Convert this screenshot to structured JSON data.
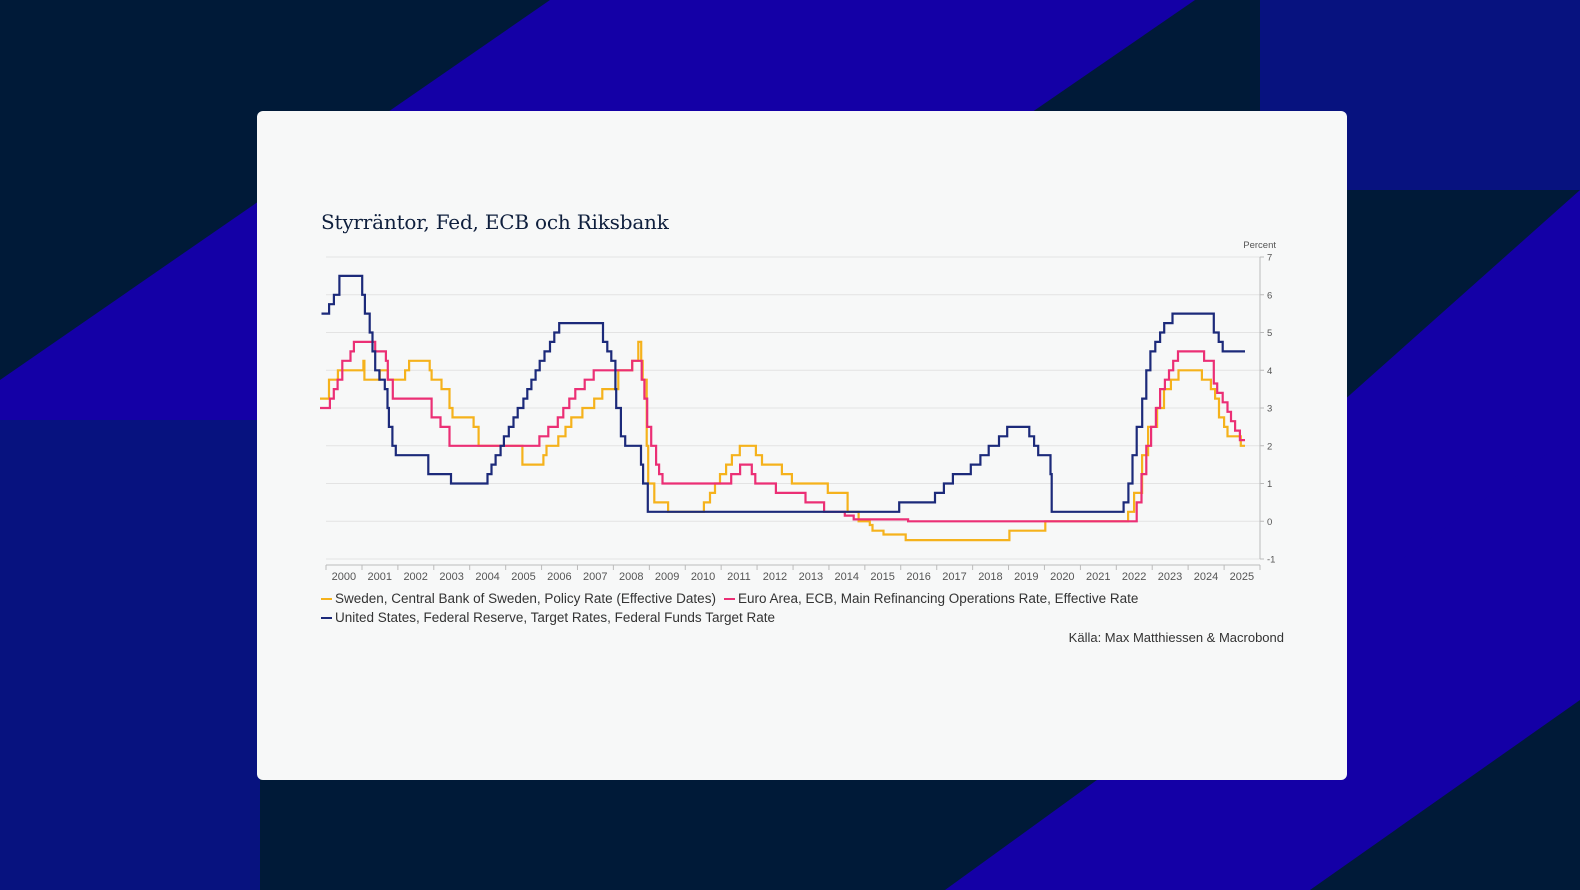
{
  "colors": {
    "background": "#001a38",
    "stripe_bright": "#1400a6",
    "stripe_dark": "#07127f",
    "card": "#f7f8f8",
    "grid": "#e3e3e3",
    "axis": "#bbbbbb",
    "tick_text": "#555555",
    "title_text": "#0f1f3d"
  },
  "chart_data": {
    "type": "line",
    "title": "Styrräntor, Fed, ECB och Riksbank",
    "ylabel": "Percent",
    "xlim": [
      "2000-01-01",
      "2026-01-01"
    ],
    "ylim": [
      -1,
      7
    ],
    "yticks": [
      -1,
      0,
      1,
      2,
      3,
      4,
      5,
      6,
      7
    ],
    "xticks": [
      "2000",
      "2001",
      "2002",
      "2003",
      "2004",
      "2005",
      "2006",
      "2007",
      "2008",
      "2009",
      "2010",
      "2011",
      "2012",
      "2013",
      "2014",
      "2015",
      "2016",
      "2017",
      "2018",
      "2019",
      "2020",
      "2021",
      "2022",
      "2023",
      "2024",
      "2025"
    ],
    "grid": true,
    "y_axis_side": "right",
    "legend_position": "bottom",
    "source": "Källa: Max Matthiessen & Macrobond",
    "series": [
      {
        "name": "Sweden, Central Bank of Sweden, Policy Rate (Effective Dates)",
        "color": "#f5b21c",
        "points": [
          [
            "1999-11-01",
            3.25
          ],
          [
            "2000-02-01",
            3.75
          ],
          [
            "2000-05-01",
            4.0
          ],
          [
            "2001-01-15",
            4.25
          ],
          [
            "2001-01-25",
            3.75
          ],
          [
            "2001-07-01",
            4.0
          ],
          [
            "2001-09-20",
            3.75
          ],
          [
            "2002-03-15",
            4.0
          ],
          [
            "2002-04-25",
            4.25
          ],
          [
            "2002-11-20",
            4.0
          ],
          [
            "2002-12-10",
            3.75
          ],
          [
            "2003-03-20",
            3.5
          ],
          [
            "2003-06-10",
            3.0
          ],
          [
            "2003-07-10",
            2.75
          ],
          [
            "2004-02-10",
            2.5
          ],
          [
            "2004-04-01",
            2.0
          ],
          [
            "2005-06-20",
            1.5
          ],
          [
            "2006-01-20",
            1.75
          ],
          [
            "2006-02-20",
            2.0
          ],
          [
            "2006-06-20",
            2.25
          ],
          [
            "2006-09-01",
            2.5
          ],
          [
            "2006-10-30",
            2.75
          ],
          [
            "2007-02-20",
            3.0
          ],
          [
            "2007-06-20",
            3.25
          ],
          [
            "2007-09-10",
            3.5
          ],
          [
            "2008-02-20",
            4.0
          ],
          [
            "2008-07-10",
            4.25
          ],
          [
            "2008-09-10",
            4.75
          ],
          [
            "2008-10-10",
            4.25
          ],
          [
            "2008-10-25",
            3.75
          ],
          [
            "2008-12-05",
            2.0
          ],
          [
            "2008-12-20",
            1.0
          ],
          [
            "2009-02-20",
            0.5
          ],
          [
            "2009-07-10",
            0.25
          ],
          [
            "2010-07-10",
            0.5
          ],
          [
            "2010-09-10",
            0.75
          ],
          [
            "2010-10-30",
            1.0
          ],
          [
            "2010-12-20",
            1.25
          ],
          [
            "2011-02-20",
            1.5
          ],
          [
            "2011-04-20",
            1.75
          ],
          [
            "2011-07-10",
            2.0
          ],
          [
            "2011-12-20",
            1.75
          ],
          [
            "2012-02-20",
            1.5
          ],
          [
            "2012-09-10",
            1.25
          ],
          [
            "2012-12-20",
            1.0
          ],
          [
            "2013-12-20",
            0.75
          ],
          [
            "2014-07-10",
            0.25
          ],
          [
            "2014-10-30",
            0.0
          ],
          [
            "2015-02-20",
            -0.1
          ],
          [
            "2015-03-20",
            -0.25
          ],
          [
            "2015-07-10",
            -0.35
          ],
          [
            "2016-02-20",
            -0.5
          ],
          [
            "2019-01-10",
            -0.25
          ],
          [
            "2020-01-10",
            0.0
          ],
          [
            "2022-05-01",
            0.25
          ],
          [
            "2022-07-01",
            0.75
          ],
          [
            "2022-09-20",
            1.75
          ],
          [
            "2022-11-20",
            2.5
          ],
          [
            "2023-02-20",
            3.0
          ],
          [
            "2023-05-01",
            3.5
          ],
          [
            "2023-07-10",
            3.75
          ],
          [
            "2023-09-25",
            4.0
          ],
          [
            "2024-05-20",
            3.75
          ],
          [
            "2024-08-20",
            3.5
          ],
          [
            "2024-10-01",
            3.25
          ],
          [
            "2024-11-10",
            2.75
          ],
          [
            "2025-01-01",
            2.5
          ],
          [
            "2025-02-05",
            2.25
          ],
          [
            "2025-06-20",
            2.0
          ],
          [
            "2025-08-01",
            2.0
          ]
        ]
      },
      {
        "name": "Euro Area, ECB, Main Refinancing Operations Rate, Effective Rate",
        "color": "#eb2f75",
        "points": [
          [
            "1999-11-01",
            3.0
          ],
          [
            "2000-02-10",
            3.25
          ],
          [
            "2000-03-20",
            3.5
          ],
          [
            "2000-04-28",
            3.75
          ],
          [
            "2000-06-15",
            4.25
          ],
          [
            "2000-09-06",
            4.5
          ],
          [
            "2000-10-11",
            4.75
          ],
          [
            "2001-05-15",
            4.5
          ],
          [
            "2001-09-01",
            4.25
          ],
          [
            "2001-09-20",
            3.75
          ],
          [
            "2001-11-10",
            3.25
          ],
          [
            "2002-12-10",
            2.75
          ],
          [
            "2003-03-10",
            2.5
          ],
          [
            "2003-06-10",
            2.0
          ],
          [
            "2005-12-10",
            2.25
          ],
          [
            "2006-03-10",
            2.5
          ],
          [
            "2006-06-15",
            2.75
          ],
          [
            "2006-08-10",
            3.0
          ],
          [
            "2006-10-10",
            3.25
          ],
          [
            "2006-12-10",
            3.5
          ],
          [
            "2007-03-15",
            3.75
          ],
          [
            "2007-06-15",
            4.0
          ],
          [
            "2008-07-10",
            4.25
          ],
          [
            "2008-10-15",
            3.75
          ],
          [
            "2008-11-12",
            3.25
          ],
          [
            "2008-12-10",
            2.5
          ],
          [
            "2009-01-20",
            2.0
          ],
          [
            "2009-03-10",
            1.5
          ],
          [
            "2009-04-10",
            1.25
          ],
          [
            "2009-05-15",
            1.0
          ],
          [
            "2011-04-13",
            1.25
          ],
          [
            "2011-07-13",
            1.5
          ],
          [
            "2011-11-09",
            1.25
          ],
          [
            "2011-12-14",
            1.0
          ],
          [
            "2012-07-11",
            0.75
          ],
          [
            "2013-05-08",
            0.5
          ],
          [
            "2013-11-13",
            0.25
          ],
          [
            "2014-06-11",
            0.15
          ],
          [
            "2014-09-10",
            0.05
          ],
          [
            "2016-03-16",
            0.0
          ],
          [
            "2022-07-27",
            0.5
          ],
          [
            "2022-09-14",
            1.25
          ],
          [
            "2022-11-02",
            2.0
          ],
          [
            "2022-12-21",
            2.5
          ],
          [
            "2023-02-08",
            3.0
          ],
          [
            "2023-03-22",
            3.5
          ],
          [
            "2023-05-10",
            3.75
          ],
          [
            "2023-06-21",
            4.0
          ],
          [
            "2023-08-02",
            4.25
          ],
          [
            "2023-09-20",
            4.5
          ],
          [
            "2024-06-12",
            4.25
          ],
          [
            "2024-09-18",
            3.65
          ],
          [
            "2024-10-23",
            3.4
          ],
          [
            "2024-12-18",
            3.15
          ],
          [
            "2025-02-05",
            2.9
          ],
          [
            "2025-03-12",
            2.65
          ],
          [
            "2025-04-23",
            2.4
          ],
          [
            "2025-06-11",
            2.15
          ],
          [
            "2025-08-01",
            2.15
          ]
        ]
      },
      {
        "name": "United States, Federal Reserve, Target Rates, Federal Funds Target Rate",
        "color": "#1c2a7a",
        "points": [
          [
            "1999-11-16",
            5.5
          ],
          [
            "2000-02-02",
            5.75
          ],
          [
            "2000-03-21",
            6.0
          ],
          [
            "2000-05-16",
            6.5
          ],
          [
            "2001-01-03",
            6.0
          ],
          [
            "2001-01-31",
            5.5
          ],
          [
            "2001-03-20",
            5.0
          ],
          [
            "2001-04-18",
            4.5
          ],
          [
            "2001-05-15",
            4.0
          ],
          [
            "2001-06-27",
            3.75
          ],
          [
            "2001-08-21",
            3.5
          ],
          [
            "2001-09-17",
            3.0
          ],
          [
            "2001-10-02",
            2.5
          ],
          [
            "2001-11-06",
            2.0
          ],
          [
            "2001-12-11",
            1.75
          ],
          [
            "2002-11-06",
            1.25
          ],
          [
            "2003-06-25",
            1.0
          ],
          [
            "2004-06-30",
            1.25
          ],
          [
            "2004-08-10",
            1.5
          ],
          [
            "2004-09-21",
            1.75
          ],
          [
            "2004-11-10",
            2.0
          ],
          [
            "2004-12-14",
            2.25
          ],
          [
            "2005-02-02",
            2.5
          ],
          [
            "2005-03-22",
            2.75
          ],
          [
            "2005-05-03",
            3.0
          ],
          [
            "2005-06-30",
            3.25
          ],
          [
            "2005-08-09",
            3.5
          ],
          [
            "2005-09-20",
            3.75
          ],
          [
            "2005-11-01",
            4.0
          ],
          [
            "2005-12-13",
            4.25
          ],
          [
            "2006-01-31",
            4.5
          ],
          [
            "2006-03-28",
            4.75
          ],
          [
            "2006-05-10",
            5.0
          ],
          [
            "2006-06-29",
            5.25
          ],
          [
            "2007-09-18",
            4.75
          ],
          [
            "2007-10-31",
            4.5
          ],
          [
            "2007-12-11",
            4.25
          ],
          [
            "2008-01-22",
            3.5
          ],
          [
            "2008-01-30",
            3.0
          ],
          [
            "2008-03-18",
            2.25
          ],
          [
            "2008-04-30",
            2.0
          ],
          [
            "2008-10-08",
            1.5
          ],
          [
            "2008-10-29",
            1.0
          ],
          [
            "2008-12-16",
            0.25
          ],
          [
            "2015-12-16",
            0.5
          ],
          [
            "2016-12-14",
            0.75
          ],
          [
            "2017-03-15",
            1.0
          ],
          [
            "2017-06-14",
            1.25
          ],
          [
            "2017-12-13",
            1.5
          ],
          [
            "2018-03-21",
            1.75
          ],
          [
            "2018-06-13",
            2.0
          ],
          [
            "2018-09-26",
            2.25
          ],
          [
            "2018-12-19",
            2.5
          ],
          [
            "2019-07-31",
            2.25
          ],
          [
            "2019-09-18",
            2.0
          ],
          [
            "2019-10-30",
            1.75
          ],
          [
            "2020-03-03",
            1.25
          ],
          [
            "2020-03-15",
            0.25
          ],
          [
            "2022-03-16",
            0.5
          ],
          [
            "2022-05-04",
            1.0
          ],
          [
            "2022-06-15",
            1.75
          ],
          [
            "2022-07-27",
            2.5
          ],
          [
            "2022-09-21",
            3.25
          ],
          [
            "2022-11-02",
            4.0
          ],
          [
            "2022-12-14",
            4.5
          ],
          [
            "2023-02-01",
            4.75
          ],
          [
            "2023-03-22",
            5.0
          ],
          [
            "2023-05-03",
            5.25
          ],
          [
            "2023-07-26",
            5.5
          ],
          [
            "2024-09-18",
            5.0
          ],
          [
            "2024-11-07",
            4.75
          ],
          [
            "2024-12-18",
            4.5
          ],
          [
            "2025-08-01",
            4.5
          ]
        ]
      }
    ]
  }
}
